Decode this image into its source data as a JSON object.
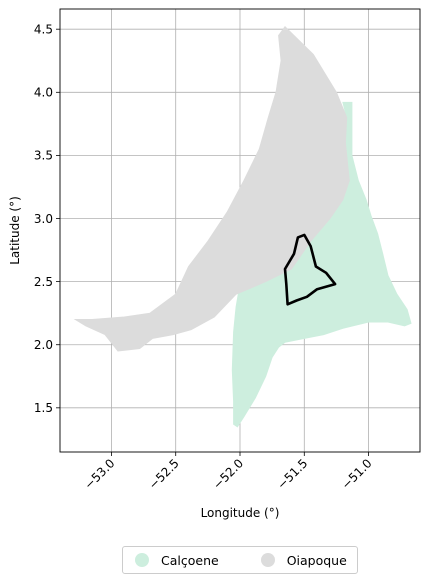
{
  "chart_data": {
    "type": "map",
    "xlabel": "Longitude (°)",
    "ylabel": "Latitude (°)",
    "xlim": [
      -53.4,
      -50.6
    ],
    "ylim": [
      1.15,
      4.66
    ],
    "xticks": [
      -53.0,
      -52.5,
      -52.0,
      -51.5,
      -51.0
    ],
    "xtick_labels": [
      "−53.0",
      "−52.5",
      "−52.0",
      "−51.5",
      "−51.0"
    ],
    "yticks": [
      1.5,
      2.0,
      2.5,
      3.0,
      3.5,
      4.0,
      4.5
    ],
    "ytick_labels": [
      "1.5",
      "2.0",
      "2.5",
      "3.0",
      "3.5",
      "4.0",
      "4.5"
    ],
    "grid": true,
    "legend_position": "bottom-center",
    "regions": [
      {
        "name": "Calçoene",
        "color": "#cdeede",
        "outline": [
          [
            -51.13,
            3.92
          ],
          [
            -51.13,
            3.5
          ],
          [
            -51.08,
            3.3
          ],
          [
            -51.02,
            3.15
          ],
          [
            -50.98,
            3.02
          ],
          [
            -50.93,
            2.88
          ],
          [
            -50.89,
            2.72
          ],
          [
            -50.85,
            2.55
          ],
          [
            -50.78,
            2.4
          ],
          [
            -50.7,
            2.28
          ],
          [
            -50.67,
            2.17
          ],
          [
            -50.72,
            2.15
          ],
          [
            -50.85,
            2.18
          ],
          [
            -51.0,
            2.18
          ],
          [
            -51.2,
            2.13
          ],
          [
            -51.35,
            2.08
          ],
          [
            -51.5,
            2.05
          ],
          [
            -51.65,
            2.02
          ],
          [
            -51.7,
            1.98
          ],
          [
            -51.75,
            1.9
          ],
          [
            -51.8,
            1.75
          ],
          [
            -51.88,
            1.58
          ],
          [
            -51.97,
            1.43
          ],
          [
            -52.02,
            1.35
          ],
          [
            -52.05,
            1.37
          ],
          [
            -52.05,
            1.55
          ],
          [
            -52.06,
            1.8
          ],
          [
            -52.05,
            2.1
          ],
          [
            -52.03,
            2.3
          ],
          [
            -52.0,
            2.48
          ],
          [
            -51.8,
            2.5
          ],
          [
            -51.6,
            2.6
          ],
          [
            -51.45,
            2.82
          ],
          [
            -51.3,
            3.0
          ],
          [
            -51.2,
            3.15
          ],
          [
            -51.15,
            3.3
          ],
          [
            -51.18,
            3.6
          ],
          [
            -51.17,
            3.8
          ],
          [
            -51.2,
            3.92
          ]
        ]
      },
      {
        "name": "Oiapoque",
        "color": "#dcdcdc",
        "outline": [
          [
            -51.65,
            4.52
          ],
          [
            -51.43,
            4.3
          ],
          [
            -51.25,
            4.0
          ],
          [
            -51.17,
            3.8
          ],
          [
            -51.18,
            3.6
          ],
          [
            -51.15,
            3.3
          ],
          [
            -51.2,
            3.15
          ],
          [
            -51.3,
            3.0
          ],
          [
            -51.45,
            2.82
          ],
          [
            -51.6,
            2.6
          ],
          [
            -51.8,
            2.5
          ],
          [
            -52.03,
            2.4
          ],
          [
            -52.2,
            2.22
          ],
          [
            -52.38,
            2.12
          ],
          [
            -52.52,
            2.08
          ],
          [
            -52.68,
            2.05
          ],
          [
            -52.78,
            1.97
          ],
          [
            -52.95,
            1.95
          ],
          [
            -53.05,
            2.08
          ],
          [
            -53.2,
            2.15
          ],
          [
            -53.28,
            2.2
          ],
          [
            -53.15,
            2.2
          ],
          [
            -52.9,
            2.22
          ],
          [
            -52.7,
            2.25
          ],
          [
            -52.5,
            2.4
          ],
          [
            -52.4,
            2.62
          ],
          [
            -52.25,
            2.82
          ],
          [
            -52.1,
            3.05
          ],
          [
            -51.97,
            3.3
          ],
          [
            -51.85,
            3.55
          ],
          [
            -51.78,
            3.8
          ],
          [
            -51.72,
            4.0
          ],
          [
            -51.68,
            4.25
          ],
          [
            -51.7,
            4.45
          ]
        ]
      }
    ],
    "highlight_outline": {
      "color": "#000000",
      "points": [
        [
          -51.5,
          2.87
        ],
        [
          -51.45,
          2.78
        ],
        [
          -51.41,
          2.62
        ],
        [
          -51.33,
          2.57
        ],
        [
          -51.26,
          2.48
        ],
        [
          -51.4,
          2.44
        ],
        [
          -51.48,
          2.38
        ],
        [
          -51.56,
          2.35
        ],
        [
          -51.63,
          2.32
        ],
        [
          -51.64,
          2.48
        ],
        [
          -51.65,
          2.6
        ],
        [
          -51.58,
          2.72
        ],
        [
          -51.55,
          2.85
        ]
      ]
    }
  },
  "legend": {
    "items": [
      {
        "label": "Calçoene",
        "color": "#cdeede"
      },
      {
        "label": "Oiapoque",
        "color": "#dcdcdc"
      }
    ]
  }
}
